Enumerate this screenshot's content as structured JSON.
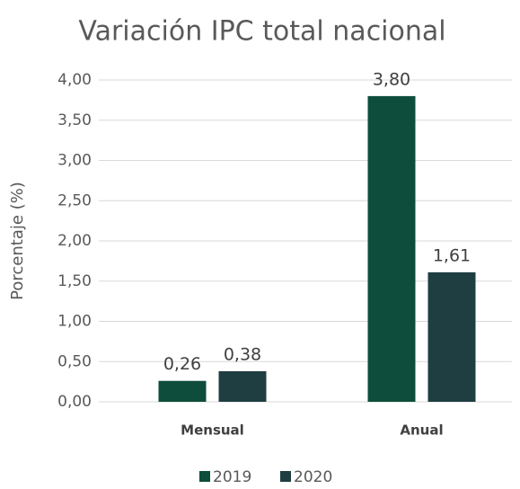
{
  "chart_data": {
    "type": "bar",
    "title": "Variación IPC total nacional",
    "ylabel": "Porcentaje (%)",
    "categories": [
      "Mensual",
      "Anual"
    ],
    "series": [
      {
        "name": "2019",
        "color": "#0e4d3b",
        "values": [
          0.26,
          3.8
        ],
        "value_labels": [
          "0,26",
          "3,80"
        ]
      },
      {
        "name": "2020",
        "color": "#1f3e41",
        "values": [
          0.38,
          1.61
        ],
        "value_labels": [
          "0,38",
          "1,61"
        ]
      }
    ],
    "ylim": [
      0,
      4
    ],
    "yticks": [
      {
        "value": 0,
        "label": "0,00"
      },
      {
        "value": 0.5,
        "label": "0,50"
      },
      {
        "value": 1,
        "label": "1,00"
      },
      {
        "value": 1.5,
        "label": "1,50"
      },
      {
        "value": 2,
        "label": "2,00"
      },
      {
        "value": 2.5,
        "label": "2,50"
      },
      {
        "value": 3,
        "label": "3,00"
      },
      {
        "value": 3.5,
        "label": "3,50"
      },
      {
        "value": 4,
        "label": "4,00"
      }
    ],
    "grid": true,
    "legend": "bottom"
  }
}
